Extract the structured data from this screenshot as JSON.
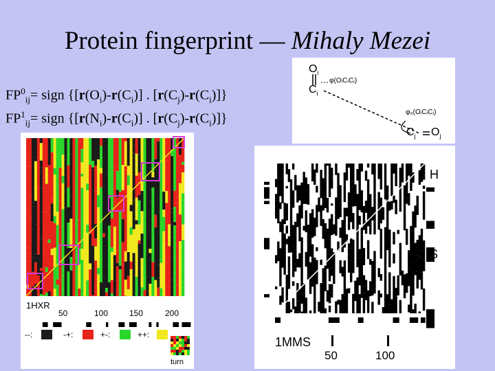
{
  "slide": {
    "title": "Protein fingerprint —",
    "author": "Mihaly Mezei",
    "formula0": {
      "head": "FP",
      "sup": "0",
      "sub": "ij",
      "eq": "= sign {[",
      "r1": "r",
      "arg1": "(O",
      "i1": "i",
      "close1": ")-",
      "r2": "r",
      "arg2": "(C",
      "i2": "i",
      "close2": ")] . [",
      "r3": "r",
      "arg3": "(C",
      "j3": "j",
      "close3": ")-",
      "r4": "r",
      "arg4": "(C",
      "i4": "i",
      "close4": ")]}"
    },
    "formula1": {
      "head": "FP",
      "sup": "1",
      "sub": "ij",
      "eq": "= sign {[",
      "r1": "r",
      "arg1": "(N",
      "i1": "i",
      "close1": ")-",
      "r2": "r",
      "arg2": "(C",
      "i2": "i",
      "close2": ")] . [",
      "r3": "r",
      "arg3": "(C",
      "j3": "j",
      "close3": ")-",
      "r4": "r",
      "arg4": "(C",
      "i4": "i",
      "close4": ")]}"
    }
  },
  "diagram": {
    "oi": "O",
    "oi_sub": "i",
    "ci": "C",
    "ci_sub": "i",
    "phi": "φ",
    "phi_args": "(OᵢCᵢCⱼ)",
    "phi0": "φ₀(OᵢCᵢCⱼ)",
    "cj": "C",
    "cj_sub": "j",
    "oj": "O",
    "oj_sub": "j"
  },
  "left_panel": {
    "protein_id": "1HXR",
    "axis_ticks": [
      "50",
      "100",
      "150",
      "200"
    ],
    "legend": [
      "--:",
      "-+:",
      "+-:",
      "++:"
    ],
    "legend_colors": [
      "#1a1a1a",
      "#e8231a",
      "#2ad62a",
      "#f2e81e"
    ],
    "turn_label": "turn",
    "highlight_color": "#d23cd2"
  },
  "right_panel": {
    "protein_id": "1MMS",
    "axis_ticks": [
      "50",
      "100"
    ],
    "side_labels": [
      "H",
      "S"
    ]
  }
}
